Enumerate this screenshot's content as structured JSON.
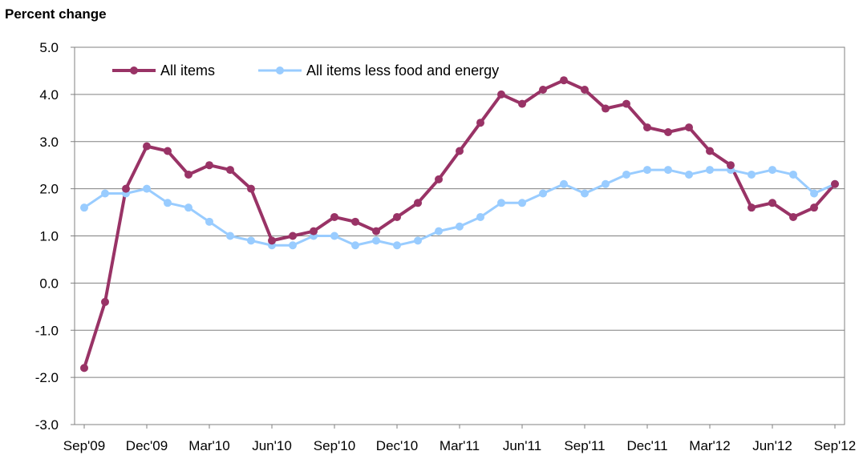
{
  "chart_data": {
    "type": "line",
    "ylabel": "Percent change",
    "ylim": [
      -3.0,
      5.0
    ],
    "y_ticks": [
      "5.0",
      "4.0",
      "3.0",
      "2.0",
      "1.0",
      "0.0",
      "-1.0",
      "-2.0",
      "-3.0"
    ],
    "x": [
      "Sep'09",
      "Oct'09",
      "Nov'09",
      "Dec'09",
      "Jan'10",
      "Feb'10",
      "Mar'10",
      "Apr'10",
      "May'10",
      "Jun'10",
      "Jul'10",
      "Aug'10",
      "Sep'10",
      "Oct'10",
      "Nov'10",
      "Dec'10",
      "Jan'11",
      "Feb'11",
      "Mar'11",
      "Apr'11",
      "May'11",
      "Jun'11",
      "Jul'11",
      "Aug'11",
      "Sep'11",
      "Oct'11",
      "Nov'11",
      "Dec'11",
      "Jan'12",
      "Feb'12",
      "Mar'12",
      "Apr'12",
      "May'12",
      "Jun'12",
      "Jul'12",
      "Aug'12",
      "Sep'12"
    ],
    "x_tick_labels": [
      "Sep'09",
      "Dec'09",
      "Mar'10",
      "Jun'10",
      "Sep'10",
      "Dec'10",
      "Mar'11",
      "Jun'11",
      "Sep'11",
      "Dec'11",
      "Mar'12",
      "Jun'12",
      "Sep'12"
    ],
    "grid": true,
    "legend_position": "top-left",
    "series": [
      {
        "name": "All items",
        "color": "#993366",
        "values": [
          -1.8,
          -0.4,
          2.0,
          2.9,
          2.8,
          2.3,
          2.5,
          2.4,
          2.0,
          0.9,
          1.0,
          1.1,
          1.4,
          1.3,
          1.1,
          1.4,
          1.7,
          2.2,
          2.8,
          3.4,
          4.0,
          3.8,
          4.1,
          4.3,
          4.1,
          3.7,
          3.8,
          3.3,
          3.2,
          3.3,
          2.8,
          2.5,
          1.6,
          1.7,
          1.4,
          1.6,
          2.1
        ]
      },
      {
        "name": "All items less food and energy",
        "color": "#99CCFF",
        "values": [
          1.6,
          1.9,
          1.9,
          2.0,
          1.7,
          1.6,
          1.3,
          1.0,
          0.9,
          0.8,
          0.8,
          1.0,
          1.0,
          0.8,
          0.9,
          0.8,
          0.9,
          1.1,
          1.2,
          1.4,
          1.7,
          1.7,
          1.9,
          2.1,
          1.9,
          2.1,
          2.3,
          2.4,
          2.4,
          2.3,
          2.4,
          2.4,
          2.3,
          2.4,
          2.3,
          1.9,
          2.1
        ]
      }
    ]
  }
}
